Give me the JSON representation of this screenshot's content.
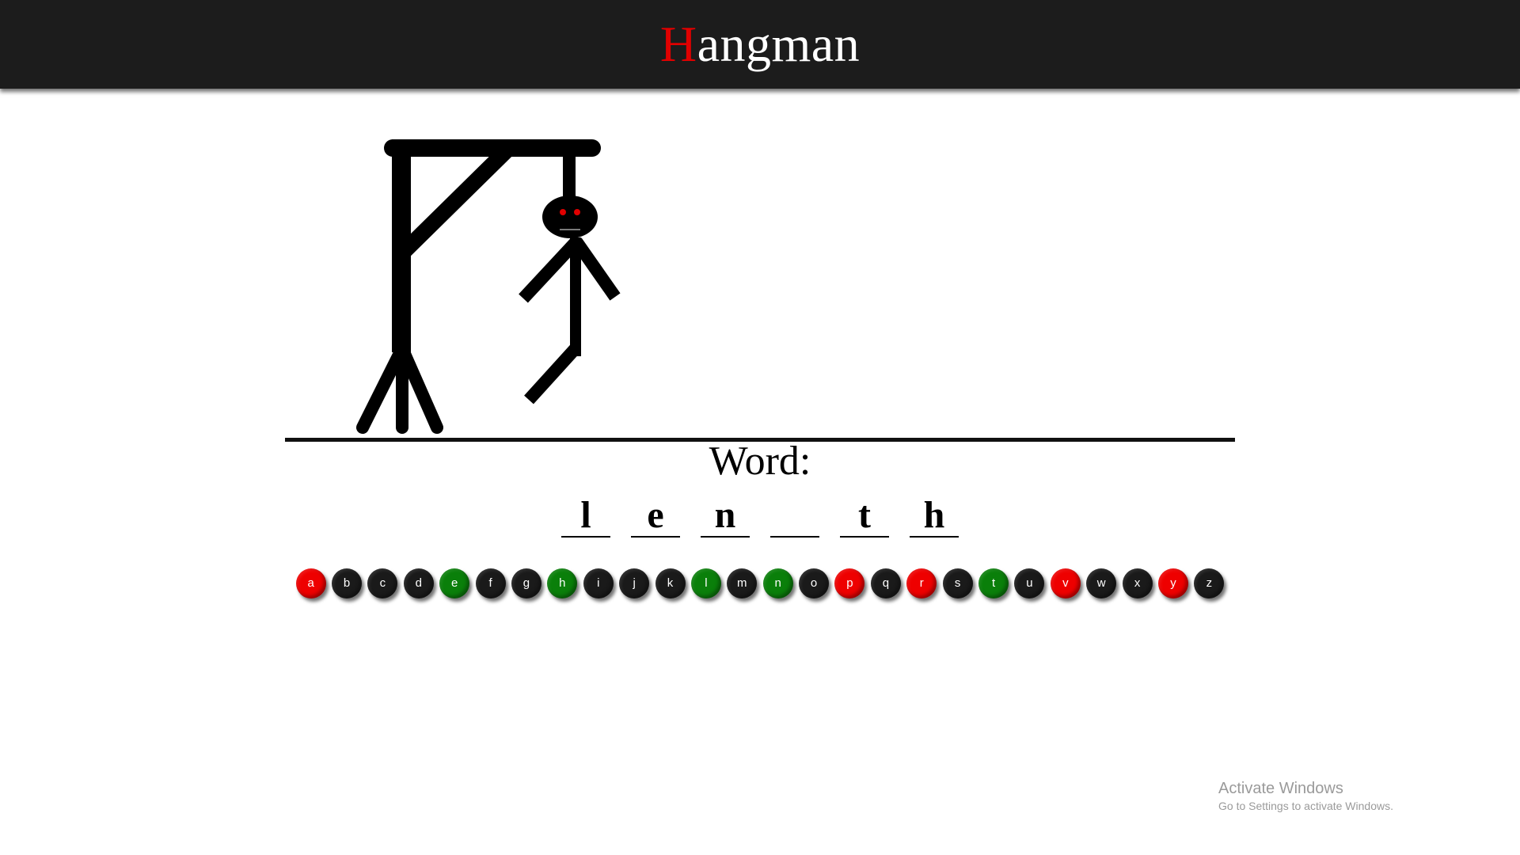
{
  "header": {
    "title_first": "H",
    "title_rest": "angman"
  },
  "word_label": "Word:",
  "word_slots": [
    "l",
    "e",
    "n",
    "",
    "t",
    "h"
  ],
  "keyboard": [
    {
      "letter": "a",
      "state": "wrong"
    },
    {
      "letter": "b",
      "state": "unused"
    },
    {
      "letter": "c",
      "state": "unused"
    },
    {
      "letter": "d",
      "state": "unused"
    },
    {
      "letter": "e",
      "state": "right"
    },
    {
      "letter": "f",
      "state": "unused"
    },
    {
      "letter": "g",
      "state": "unused"
    },
    {
      "letter": "h",
      "state": "right"
    },
    {
      "letter": "i",
      "state": "unused"
    },
    {
      "letter": "j",
      "state": "unused"
    },
    {
      "letter": "k",
      "state": "unused"
    },
    {
      "letter": "l",
      "state": "right"
    },
    {
      "letter": "m",
      "state": "unused"
    },
    {
      "letter": "n",
      "state": "right"
    },
    {
      "letter": "o",
      "state": "unused"
    },
    {
      "letter": "p",
      "state": "wrong"
    },
    {
      "letter": "q",
      "state": "unused"
    },
    {
      "letter": "r",
      "state": "wrong"
    },
    {
      "letter": "s",
      "state": "unused"
    },
    {
      "letter": "t",
      "state": "right"
    },
    {
      "letter": "u",
      "state": "unused"
    },
    {
      "letter": "v",
      "state": "wrong"
    },
    {
      "letter": "w",
      "state": "unused"
    },
    {
      "letter": "x",
      "state": "unused"
    },
    {
      "letter": "y",
      "state": "wrong"
    },
    {
      "letter": "z",
      "state": "unused"
    }
  ],
  "colors": {
    "wrong": "#ee0000",
    "right": "#0a7f0a",
    "unused": "#1a1a1a",
    "header_bg": "#1c1c1c",
    "eyes": "#e00000"
  },
  "windows_watermark": {
    "line1": "Activate Windows",
    "line2": "Go to Settings to activate Windows."
  }
}
